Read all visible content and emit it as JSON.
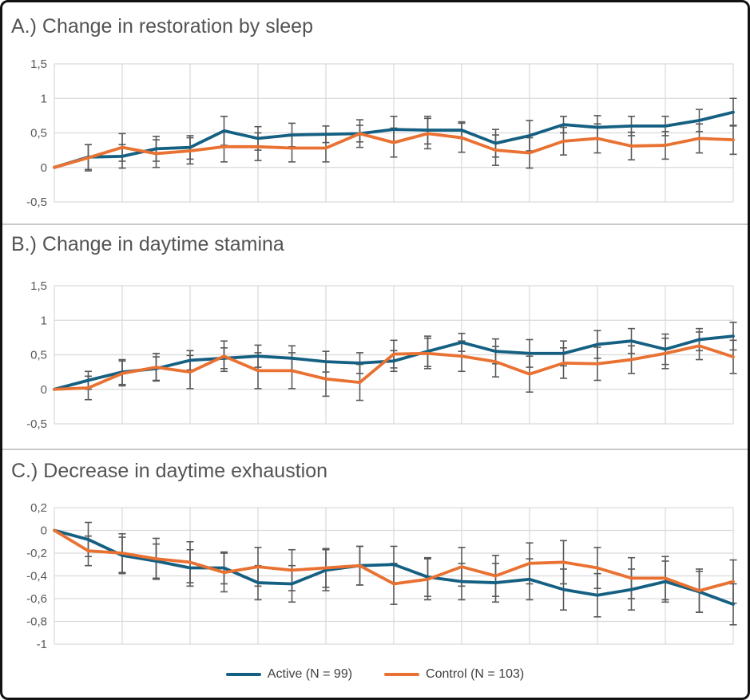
{
  "colors": {
    "active": "#156082",
    "control": "#E97132",
    "error_bar": "#595959",
    "gridline": "#D9D9D9",
    "title_text": "#545454",
    "tick_text": "#595959"
  },
  "legend": {
    "items": [
      {
        "label": "Active (N = 99)",
        "series": "active"
      },
      {
        "label": "Control (N = 103)",
        "series": "control"
      }
    ]
  },
  "chart_data": [
    {
      "type": "line",
      "title": "A.) Change in restoration by sleep",
      "ylim": [
        -0.5,
        1.5
      ],
      "yticks": [
        1.5,
        1,
        0.5,
        0,
        -0.5
      ],
      "ytick_labels": [
        "1,5",
        "1",
        "0,5",
        "0",
        "-0,5"
      ],
      "x_count": 21,
      "grid_x_every": 2,
      "legend_position": "none",
      "grid": true,
      "series": [
        {
          "name": "Active (N = 99)",
          "color_key": "active",
          "values": [
            0,
            0.15,
            0.16,
            0.27,
            0.29,
            0.53,
            0.42,
            0.47,
            0.48,
            0.49,
            0.55,
            0.54,
            0.54,
            0.35,
            0.46,
            0.62,
            0.58,
            0.6,
            0.6,
            0.68,
            0.8
          ],
          "err": [
            0,
            0.18,
            0.17,
            0.18,
            0.17,
            0.21,
            0.17,
            0.17,
            0.12,
            0.12,
            0.19,
            0.2,
            0.12,
            0.2,
            0.22,
            0.12,
            0.17,
            0.14,
            0.14,
            0.16,
            0.2
          ]
        },
        {
          "name": "Control (N = 103)",
          "color_key": "control",
          "values": [
            0,
            0.14,
            0.29,
            0.2,
            0.24,
            0.3,
            0.3,
            0.28,
            0.28,
            0.49,
            0.36,
            0.49,
            0.43,
            0.25,
            0.21,
            0.38,
            0.42,
            0.31,
            0.32,
            0.42,
            0.4
          ],
          "err": [
            0,
            0.19,
            0.2,
            0.2,
            0.19,
            0.22,
            0.2,
            0.2,
            0.2,
            0.2,
            0.21,
            0.22,
            0.21,
            0.22,
            0.22,
            0.2,
            0.21,
            0.2,
            0.2,
            0.21,
            0.21
          ]
        }
      ]
    },
    {
      "type": "line",
      "title": "B.) Change in daytime stamina",
      "ylim": [
        -0.5,
        1.5
      ],
      "yticks": [
        1.5,
        1,
        0.5,
        0,
        -0.5
      ],
      "ytick_labels": [
        "1,5",
        "1",
        "0,5",
        "0",
        "-0,5"
      ],
      "x_count": 21,
      "grid_x_every": 2,
      "legend_position": "none",
      "grid": true,
      "series": [
        {
          "name": "Active (N = 99)",
          "color_key": "active",
          "values": [
            0,
            0.13,
            0.25,
            0.3,
            0.42,
            0.45,
            0.48,
            0.45,
            0.4,
            0.38,
            0.41,
            0.55,
            0.68,
            0.55,
            0.52,
            0.52,
            0.65,
            0.7,
            0.58,
            0.72,
            0.77
          ],
          "err": [
            0,
            0.13,
            0.18,
            0.17,
            0.14,
            0.15,
            0.16,
            0.18,
            0.15,
            0.15,
            0.15,
            0.22,
            0.13,
            0.18,
            0.2,
            0.18,
            0.2,
            0.18,
            0.22,
            0.16,
            0.2
          ]
        },
        {
          "name": "Control (N = 103)",
          "color_key": "control",
          "values": [
            0,
            0.02,
            0.23,
            0.32,
            0.25,
            0.48,
            0.27,
            0.27,
            0.15,
            0.1,
            0.51,
            0.52,
            0.48,
            0.4,
            0.22,
            0.38,
            0.37,
            0.43,
            0.52,
            0.63,
            0.47
          ],
          "err": [
            0,
            0.17,
            0.18,
            0.2,
            0.24,
            0.22,
            0.26,
            0.26,
            0.25,
            0.26,
            0.2,
            0.22,
            0.22,
            0.22,
            0.26,
            0.22,
            0.24,
            0.2,
            0.22,
            0.2,
            0.24
          ]
        }
      ]
    },
    {
      "type": "line",
      "title": "C.) Decrease in daytime exhaustion",
      "ylim": [
        -1.0,
        0.2
      ],
      "yticks": [
        0.2,
        0,
        -0.2,
        -0.4,
        -0.6,
        -0.8,
        -1
      ],
      "ytick_labels": [
        "0,2",
        "0",
        "-0,2",
        "-0,4",
        "-0,6",
        "-0,8",
        "-1"
      ],
      "x_count": 21,
      "grid_x_every": 2,
      "legend_position": "none",
      "grid": true,
      "series": [
        {
          "name": "Active (N = 99)",
          "color_key": "active",
          "values": [
            0,
            -0.08,
            -0.22,
            -0.27,
            -0.33,
            -0.33,
            -0.46,
            -0.47,
            -0.35,
            -0.31,
            -0.3,
            -0.41,
            -0.45,
            -0.46,
            -0.43,
            -0.52,
            -0.57,
            -0.52,
            -0.45,
            -0.54,
            -0.65
          ],
          "err": [
            0,
            0.15,
            0.16,
            0.15,
            0.16,
            0.14,
            0.15,
            0.16,
            0.18,
            0.17,
            0.16,
            0.17,
            0.16,
            0.17,
            0.18,
            0.18,
            0.19,
            0.18,
            0.18,
            0.18,
            0.18
          ]
        },
        {
          "name": "Control (N = 103)",
          "color_key": "control",
          "values": [
            0,
            -0.18,
            -0.2,
            -0.25,
            -0.28,
            -0.37,
            -0.32,
            -0.35,
            -0.33,
            -0.31,
            -0.47,
            -0.43,
            -0.32,
            -0.4,
            -0.29,
            -0.28,
            -0.33,
            -0.42,
            -0.42,
            -0.53,
            -0.45
          ],
          "err": [
            0,
            0.13,
            0.17,
            0.18,
            0.18,
            0.17,
            0.17,
            0.18,
            0.17,
            0.17,
            0.18,
            0.18,
            0.17,
            0.18,
            0.18,
            0.19,
            0.18,
            0.18,
            0.19,
            0.19,
            0.19
          ]
        }
      ]
    }
  ]
}
